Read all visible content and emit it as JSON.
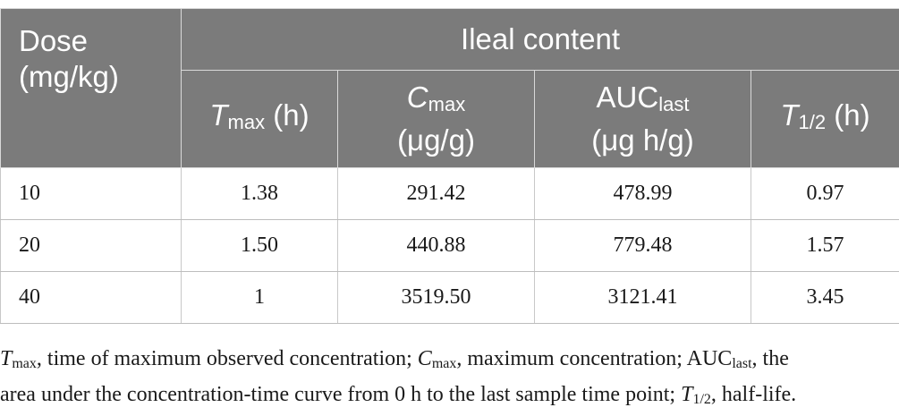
{
  "table": {
    "dose_header": [
      "Dose",
      "(mg/kg)"
    ],
    "group_header": "Ileal content",
    "columns": [
      {
        "base": "T",
        "sub": "max",
        "unit": " (h)",
        "unit2": ""
      },
      {
        "base": "C",
        "sub": "max",
        "unit": "",
        "unit2": "(μg/g)"
      },
      {
        "base": "AUC",
        "sub": "last",
        "unit": "",
        "unit2": "(μg h/g)"
      },
      {
        "base": "T",
        "sub": "1/2",
        "unit": " (h)",
        "unit2": ""
      }
    ],
    "rows": [
      {
        "dose": "10",
        "values": [
          "1.38",
          "291.42",
          "478.99",
          "0.97"
        ]
      },
      {
        "dose": "20",
        "values": [
          "1.50",
          "440.88",
          "779.48",
          "1.57"
        ]
      },
      {
        "dose": "40",
        "values": [
          "1",
          "3519.50",
          "3121.41",
          "3.45"
        ]
      }
    ]
  },
  "footnote": {
    "line1": {
      "t1": "T",
      "t1_sub": "max",
      "t1_text": ", time of maximum observed concentration; ",
      "c": "C",
      "c_sub": "max",
      "c_text": ", maximum concentration; ",
      "auc": "AUC",
      "auc_sub": "last",
      "auc_text": ", the"
    },
    "line2": {
      "text": "area under the concentration-time curve from 0 h to the last sample time point; ",
      "t": "T",
      "t_sub": "1/2",
      "t_text": ", half-life."
    }
  }
}
